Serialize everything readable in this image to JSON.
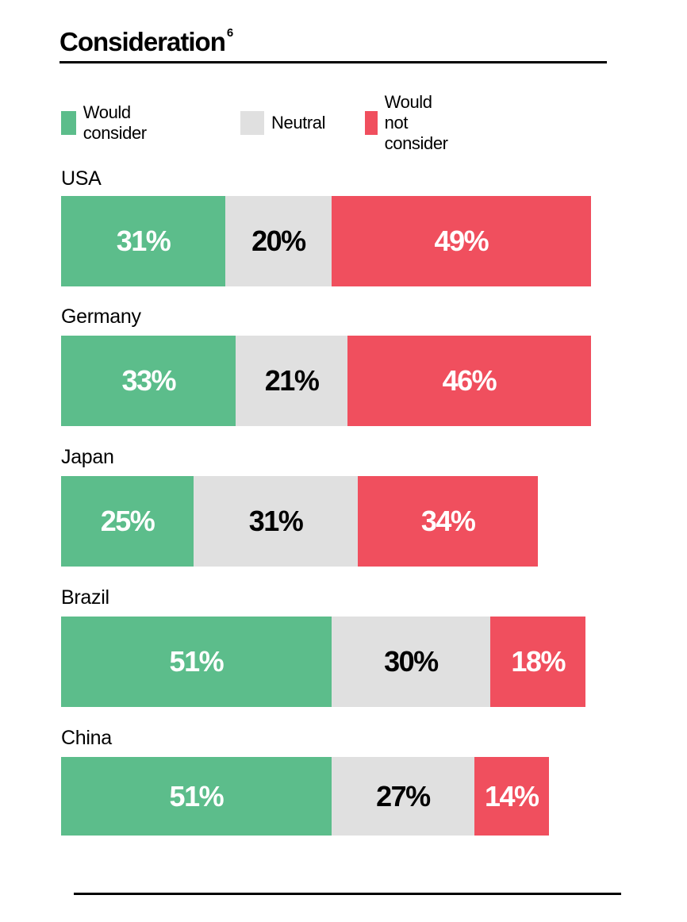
{
  "header": {
    "title": "Consideration",
    "footnote": "6"
  },
  "legend": [
    {
      "label": "Would consider",
      "color": "#5cbd8b"
    },
    {
      "label": "Neutral",
      "color": "#e0e0e0"
    },
    {
      "label": "Would not consider",
      "color": "#f04f5e"
    }
  ],
  "chart_data": {
    "type": "bar",
    "orientation": "horizontal",
    "stacked": true,
    "title": "Consideration",
    "categories": [
      "USA",
      "Germany",
      "Japan",
      "Brazil",
      "China"
    ],
    "series": [
      {
        "name": "Would consider",
        "values": [
          31,
          33,
          25,
          51,
          51
        ],
        "labels": [
          "31%",
          "33%",
          "25%",
          "51%",
          "51%"
        ],
        "color": "#5cbd8b",
        "text_color": "#ffffff"
      },
      {
        "name": "Neutral",
        "values": [
          20,
          21,
          31,
          30,
          27
        ],
        "labels": [
          "20%",
          "21%",
          "31%",
          "30%",
          "27%"
        ],
        "color": "#e0e0e0",
        "text_color": "#000000"
      },
      {
        "name": "Would not consider",
        "values": [
          49,
          46,
          34,
          18,
          14
        ],
        "labels": [
          "49%",
          "46%",
          "34%",
          "18%",
          "14%"
        ],
        "color": "#f04f5e",
        "text_color": "#ffffff"
      }
    ],
    "legend_position": "top",
    "grid": false
  }
}
